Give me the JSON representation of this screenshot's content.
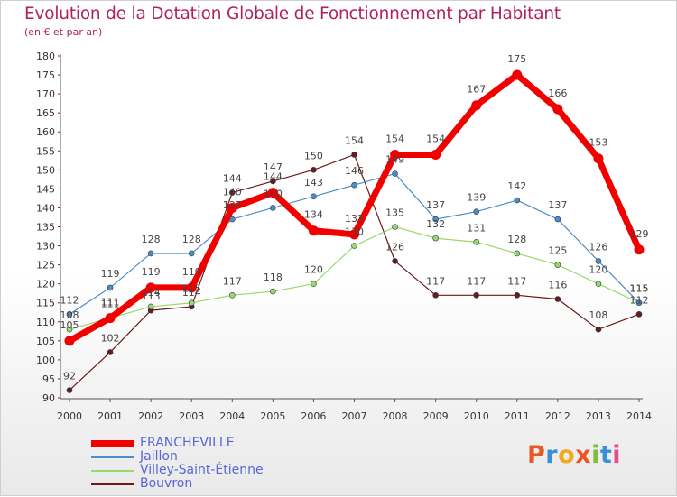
{
  "header": {
    "title": "Evolution de la Dotation Globale de Fonctionnement par Habitant",
    "subtitle": "(en € et par an)"
  },
  "brand": {
    "logo_letters": [
      "P",
      "r",
      "o",
      "x",
      "i",
      "t",
      "i"
    ],
    "logo_colors": [
      "#e8572a",
      "#3a8fd6",
      "#f2a81d",
      "#e8572a",
      "#7bbf3a",
      "#3a8fd6",
      "#e84a8a"
    ]
  },
  "chart_data": {
    "type": "line",
    "title": "Evolution de la Dotation Globale de Fonctionnement par Habitant",
    "subtitle": "(en € et par an)",
    "xlabel": "",
    "ylabel": "",
    "x": [
      "2000",
      "2001",
      "2002",
      "2003",
      "2004",
      "2005",
      "2006",
      "2007",
      "2008",
      "2009",
      "2010",
      "2011",
      "2012",
      "2013",
      "2014"
    ],
    "ylim": [
      90,
      180
    ],
    "yticks": [
      90,
      95,
      100,
      105,
      110,
      115,
      120,
      125,
      130,
      135,
      140,
      145,
      150,
      155,
      160,
      165,
      170,
      175,
      180
    ],
    "grid": false,
    "legend_position": "bottom-left",
    "series": [
      {
        "name": "Bouvron",
        "color": "#6b1a1a",
        "width": 1.2,
        "values": [
          92,
          102,
          113,
          114,
          144,
          147,
          150,
          154,
          126,
          117,
          117,
          117,
          116,
          108,
          112
        ]
      },
      {
        "name": "Villey-Saint-Étienne",
        "color": "#9ad86a",
        "width": 1.2,
        "values": [
          108,
          111,
          114,
          115,
          117,
          118,
          120,
          130,
          135,
          132,
          131,
          128,
          125,
          120,
          115
        ]
      },
      {
        "name": "Jaillon",
        "color": "#4f8dc4",
        "width": 1.2,
        "values": [
          112,
          119,
          128,
          128,
          137,
          140,
          143,
          146,
          149,
          137,
          139,
          142,
          137,
          126,
          115
        ]
      },
      {
        "name": "FRANCHEVILLE",
        "color": "#f20000",
        "width": 7,
        "values": [
          105,
          111,
          119,
          119,
          140,
          144,
          134,
          133,
          154,
          154,
          167,
          175,
          166,
          153,
          129
        ]
      }
    ],
    "legend_order": [
      "FRANCHEVILLE",
      "Jaillon",
      "Villey-Saint-Étienne",
      "Bouvron"
    ]
  }
}
